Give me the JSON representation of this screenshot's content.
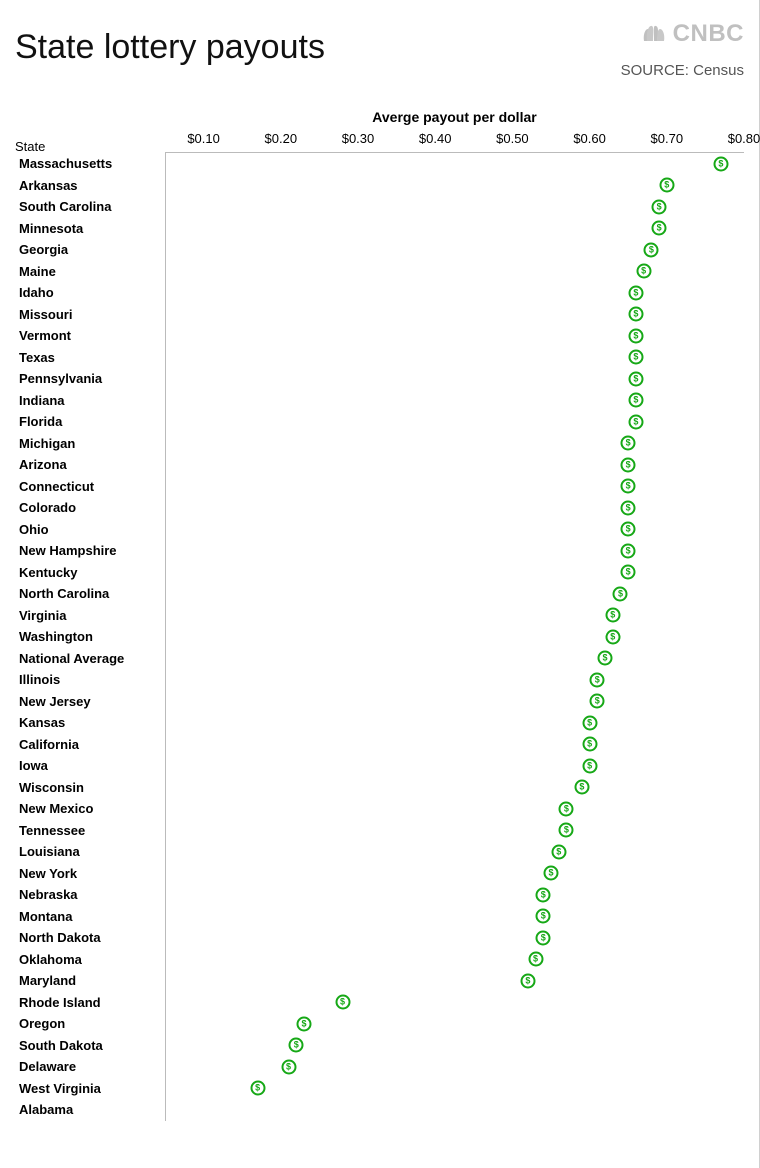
{
  "title": "State lottery payouts",
  "logo_text": "CNBC",
  "source_label": "SOURCE: Census",
  "chart": {
    "type": "dot",
    "x_axis_title": "Averge payout per dollar",
    "y_axis_title": "State",
    "xmin": 0.05,
    "xmax": 0.8,
    "ticks": [
      {
        "v": 0.1,
        "label": "$0.10"
      },
      {
        "v": 0.2,
        "label": "$0.20"
      },
      {
        "v": 0.3,
        "label": "$0.30"
      },
      {
        "v": 0.4,
        "label": "$0.40"
      },
      {
        "v": 0.5,
        "label": "$0.50"
      },
      {
        "v": 0.6,
        "label": "$0.60"
      },
      {
        "v": 0.7,
        "label": "$0.70"
      },
      {
        "v": 0.8,
        "label": "$0.80"
      }
    ],
    "marker_color": "#16a816",
    "marker_bg": "#ffffff",
    "background_color": "#ffffff",
    "label_fontsize": 13,
    "label_fontweight": 700,
    "title_fontsize": 34,
    "row_height": 21.5,
    "plot_left_margin": 150,
    "rows": [
      {
        "label": "Massachusetts",
        "value": 0.77
      },
      {
        "label": "Arkansas",
        "value": 0.7
      },
      {
        "label": "South Carolina",
        "value": 0.69
      },
      {
        "label": "Minnesota",
        "value": 0.69
      },
      {
        "label": "Georgia",
        "value": 0.68
      },
      {
        "label": "Maine",
        "value": 0.67
      },
      {
        "label": "Idaho",
        "value": 0.66
      },
      {
        "label": "Missouri",
        "value": 0.66
      },
      {
        "label": "Vermont",
        "value": 0.66
      },
      {
        "label": "Texas",
        "value": 0.66
      },
      {
        "label": "Pennsylvania",
        "value": 0.66
      },
      {
        "label": "Indiana",
        "value": 0.66
      },
      {
        "label": "Florida",
        "value": 0.66
      },
      {
        "label": "Michigan",
        "value": 0.65
      },
      {
        "label": "Arizona",
        "value": 0.65
      },
      {
        "label": "Connecticut",
        "value": 0.65
      },
      {
        "label": "Colorado",
        "value": 0.65
      },
      {
        "label": "Ohio",
        "value": 0.65
      },
      {
        "label": "New Hampshire",
        "value": 0.65
      },
      {
        "label": "Kentucky",
        "value": 0.65
      },
      {
        "label": "North Carolina",
        "value": 0.64
      },
      {
        "label": "Virginia",
        "value": 0.63
      },
      {
        "label": "Washington",
        "value": 0.63
      },
      {
        "label": "National Average",
        "value": 0.62
      },
      {
        "label": "Illinois",
        "value": 0.61
      },
      {
        "label": "New Jersey",
        "value": 0.61
      },
      {
        "label": "Kansas",
        "value": 0.6
      },
      {
        "label": "California",
        "value": 0.6
      },
      {
        "label": "Iowa",
        "value": 0.6
      },
      {
        "label": "Wisconsin",
        "value": 0.59
      },
      {
        "label": "New Mexico",
        "value": 0.57
      },
      {
        "label": "Tennessee",
        "value": 0.57
      },
      {
        "label": "Louisiana",
        "value": 0.56
      },
      {
        "label": "New York",
        "value": 0.55
      },
      {
        "label": "Nebraska",
        "value": 0.54
      },
      {
        "label": "Montana",
        "value": 0.54
      },
      {
        "label": "North Dakota",
        "value": 0.54
      },
      {
        "label": "Oklahoma",
        "value": 0.53
      },
      {
        "label": "Maryland",
        "value": 0.52
      },
      {
        "label": "Rhode Island",
        "value": 0.28
      },
      {
        "label": "Oregon",
        "value": 0.23
      },
      {
        "label": "South Dakota",
        "value": 0.22
      },
      {
        "label": "Delaware",
        "value": 0.21
      },
      {
        "label": "West Virginia",
        "value": 0.17
      },
      {
        "label": "Alabama",
        "value": null
      }
    ]
  }
}
